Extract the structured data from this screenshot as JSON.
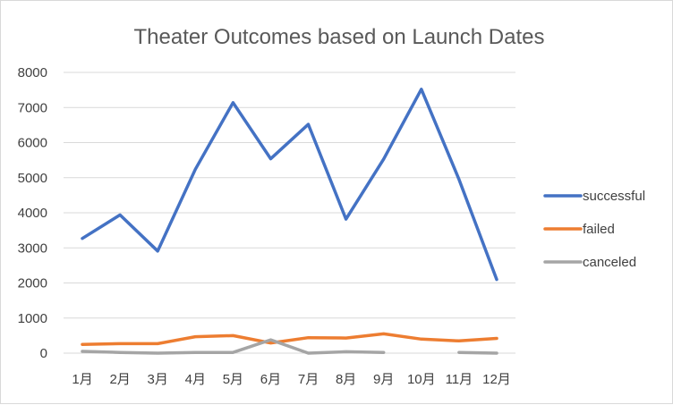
{
  "chart_data": {
    "type": "line",
    "title": "Theater Outcomes based on Launch Dates",
    "xlabel": "",
    "ylabel": "",
    "categories": [
      "1月",
      "2月",
      "3月",
      "4月",
      "5月",
      "6月",
      "7月",
      "8月",
      "9月",
      "10月",
      "11月",
      "12月"
    ],
    "ylim": [
      0,
      8000
    ],
    "yticks": [
      0,
      1000,
      2000,
      3000,
      4000,
      5000,
      6000,
      7000,
      8000
    ],
    "grid": true,
    "legend_position": "right",
    "series": [
      {
        "name": "successful",
        "color": "#4472C4",
        "values": [
          3270,
          3940,
          2910,
          5240,
          7140,
          5540,
          6520,
          3820,
          5530,
          7520,
          4950,
          2100
        ]
      },
      {
        "name": "failed",
        "color": "#ED7D31",
        "values": [
          250,
          270,
          270,
          470,
          500,
          290,
          440,
          430,
          550,
          400,
          350,
          420
        ]
      },
      {
        "name": "canceled",
        "color": "#A5A5A5",
        "values": [
          50,
          20,
          0,
          20,
          20,
          380,
          0,
          40,
          20,
          null,
          20,
          0
        ]
      }
    ]
  }
}
